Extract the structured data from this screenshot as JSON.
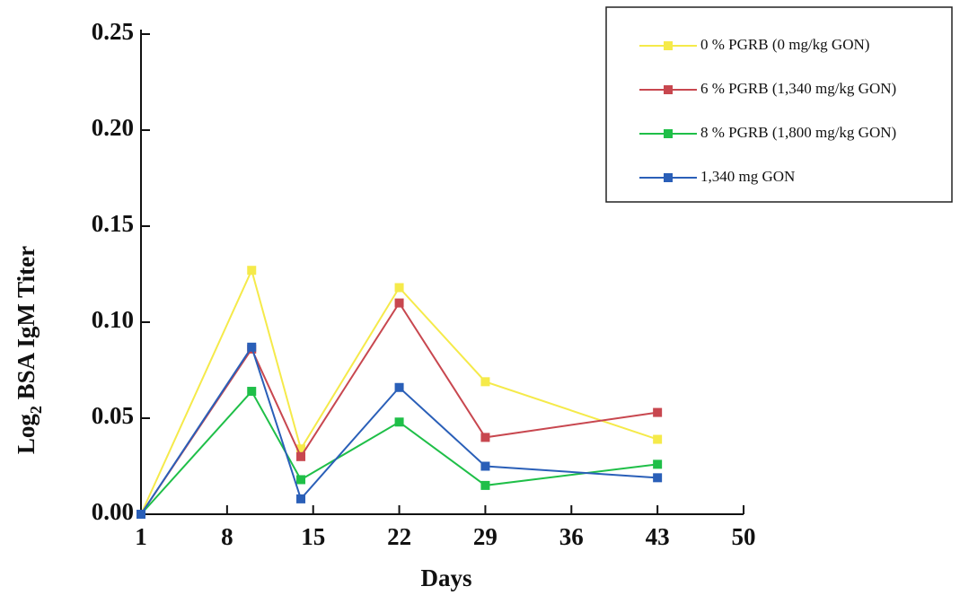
{
  "chart_data": {
    "type": "line",
    "xlabel": "Days",
    "ylabel": {
      "base": "Log",
      "subscript": "2",
      "rest": " BSA IgM Titer"
    },
    "x": [
      1,
      10,
      14,
      22,
      29,
      43
    ],
    "xlim": [
      1,
      50
    ],
    "xticks": [
      1,
      8,
      15,
      22,
      29,
      36,
      43,
      50
    ],
    "ylim": [
      0,
      0.25
    ],
    "yticks": [
      {
        "value": 0,
        "label": "0.00"
      },
      0.05,
      {
        "value": 0.1,
        "label": "0.10"
      },
      0.15,
      {
        "value": 0.2,
        "label": "0.20"
      },
      0.25
    ],
    "legend": "top-right",
    "series": [
      {
        "name": "0 % PGRB (0 mg/kg GON)",
        "color": "#f5ea4a",
        "values": [
          0,
          0.127,
          0.034,
          0.118,
          0.069,
          0.039
        ]
      },
      {
        "name": "6 % PGRB (1,340 mg/kg GON)",
        "color": "#c8474f",
        "values": [
          0,
          0.086,
          0.03,
          0.11,
          0.04,
          0.053
        ]
      },
      {
        "name": "8 % PGRB (1,800 mg/kg GON)",
        "color": "#1fbf48",
        "values": [
          0,
          0.064,
          0.018,
          0.048,
          0.015,
          0.026
        ]
      },
      {
        "name": "1,340 mg GON",
        "color": "#2a5fb8",
        "values": [
          0,
          0.087,
          0.008,
          0.066,
          0.025,
          0.019
        ]
      }
    ]
  }
}
